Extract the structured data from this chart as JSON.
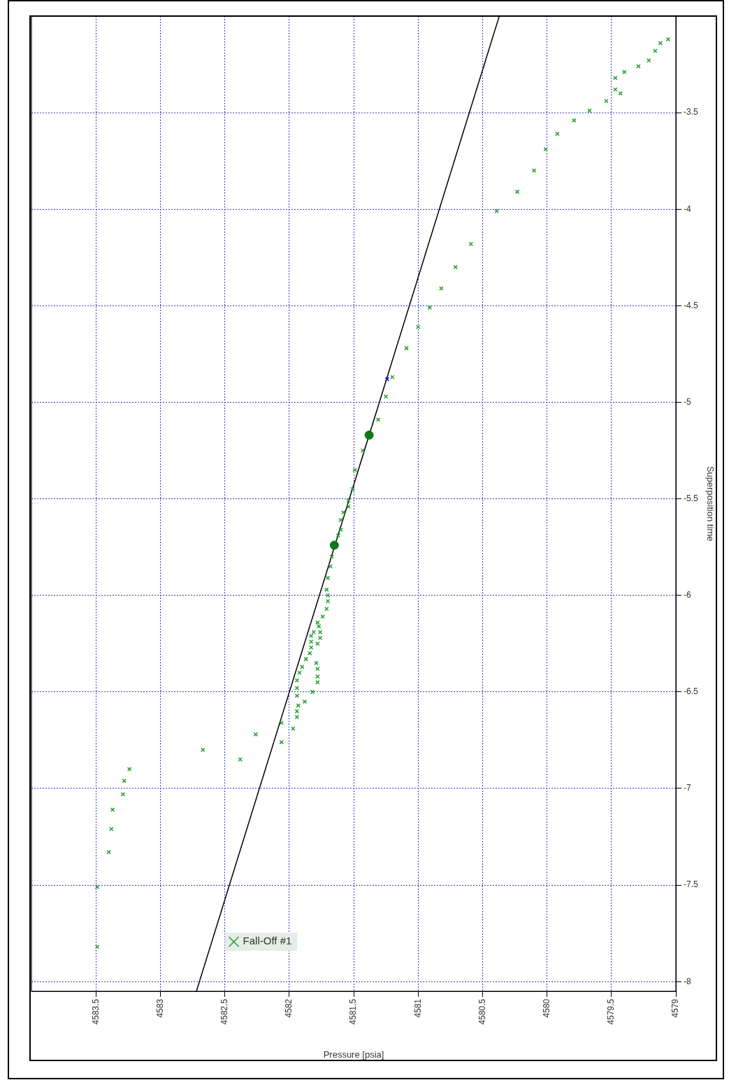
{
  "chart_data": {
    "type": "scatter",
    "xlabel": "Pressure [psia]",
    "ylabel": "Superposition time",
    "xlim": [
      4584,
      4579
    ],
    "ylim": [
      -8.05,
      -3
    ],
    "xticks": [
      4583.5,
      4583,
      4582.5,
      4582,
      4581.5,
      4581,
      4580.5,
      4580,
      4579.5,
      4579
    ],
    "yticks": [
      -8,
      -7.5,
      -7,
      -6.5,
      -6,
      -5.5,
      -5,
      -4.5,
      -4,
      -3.5
    ],
    "grid": true,
    "legend": "bottom left",
    "series": [
      {
        "name": "Fall-Off #1",
        "type": "scatter",
        "marker": "cross",
        "color": "#22a02c",
        "values": [
          -7.82,
          -7.51,
          -7.33,
          -7.21,
          -7.11,
          -7.03,
          -6.96,
          -6.9,
          -6.85,
          -6.8,
          -6.76,
          -6.72,
          -6.69,
          -6.66,
          -6.63,
          -6.6,
          -6.57,
          -6.55,
          -6.52,
          -6.5,
          -6.48,
          -6.45,
          -6.44,
          -6.42,
          -6.4,
          -6.38,
          -6.37,
          -6.35,
          -6.33,
          -6.3,
          -6.27,
          -6.25,
          -6.24,
          -6.22,
          -6.21,
          -6.19,
          -6.19,
          -6.16,
          -6.14,
          -6.11,
          -6.07,
          -6.03,
          -6,
          -5.97,
          -5.91,
          -5.85,
          -5.8,
          -5.69,
          -5.66,
          -5.61,
          -5.57,
          -5.54,
          -5.51,
          -5.45,
          -5.35,
          -5.25,
          -5.09,
          -4.97,
          -4.87,
          -4.72,
          -4.61,
          -4.51,
          -4.41,
          -4.3,
          -4.18,
          -4.01,
          -3.91,
          -3.8,
          -3.69,
          -3.61,
          -3.54,
          -3.49,
          -3.44,
          -3.4,
          -3.38,
          -3.32,
          -3.29,
          -3.26,
          -3.23,
          -3.18,
          -3.14,
          -3.12
        ],
        "x": [
          4583.49,
          4583.49,
          4583.4,
          4583.38,
          4583.37,
          4583.29,
          4583.28,
          4583.24,
          4582.38,
          4582.67,
          4582.06,
          4582.26,
          4581.97,
          4582.06,
          4581.94,
          4581.94,
          4581.93,
          4581.88,
          4581.94,
          4581.82,
          4581.94,
          4581.78,
          4581.94,
          4581.78,
          4581.92,
          4581.78,
          4581.9,
          4581.79,
          4581.87,
          4581.84,
          4581.83,
          4581.78,
          4581.83,
          4581.76,
          4581.83,
          4581.81,
          4581.76,
          4581.77,
          4581.78,
          4581.74,
          4581.71,
          4581.7,
          4581.7,
          4581.71,
          4581.7,
          4581.68,
          4581.67,
          4581.62,
          4581.6,
          4581.6,
          4581.58,
          4581.54,
          4581.54,
          4581.51,
          4581.49,
          4581.43,
          4581.31,
          4581.25,
          4581.2,
          4581.09,
          4581,
          4580.91,
          4580.82,
          4580.71,
          4580.59,
          4580.39,
          4580.23,
          4580.1,
          4580.01,
          4579.92,
          4579.79,
          4579.67,
          4579.54,
          4579.43,
          4579.47,
          4579.47,
          4579.4,
          4579.29,
          4579.21,
          4579.16,
          4579.12,
          4579.06
        ]
      },
      {
        "type": "line",
        "marker": "none",
        "color": "#000000",
        "x": [
          4582.72,
          4580.37
        ],
        "values": [
          -8.05,
          -3
        ]
      },
      {
        "type": "scatter",
        "marker": "circle",
        "color": "#0c7a18",
        "x": [
          4581.65,
          4581.38
        ],
        "values": [
          -5.74,
          -5.17
        ]
      },
      {
        "type": "scatter",
        "marker": "cross",
        "color": "#1010e0",
        "x": [
          4581.24
        ],
        "values": [
          -4.88
        ]
      }
    ]
  }
}
